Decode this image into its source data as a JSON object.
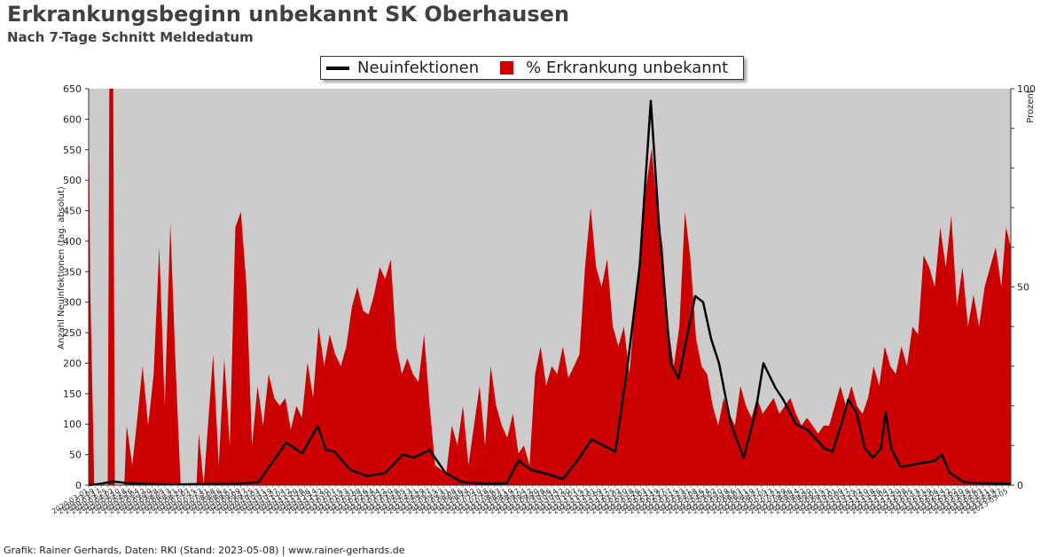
{
  "title": "Erkrankungsbeginn unbekannt SK Oberhausen",
  "subtitle": "Nach 7-Tage Schnitt Meldedatum",
  "footer": "Grafik: Rainer Gerhards, Daten: RKI (Stand: 2023-05-08) | www.rainer-gerhards.de",
  "colors": {
    "plot_background": "#cccccc",
    "line": "#000000",
    "area": "#cc0000"
  },
  "chart_data": {
    "type": "area",
    "xlabel": "",
    "ylabel": "Anzahl Neuinfektionen (tag. absolut)",
    "y2label": "Prozent",
    "ylim": [
      0,
      650
    ],
    "y2lim": [
      0,
      100
    ],
    "yticks": [
      0,
      50,
      100,
      150,
      200,
      250,
      300,
      350,
      400,
      450,
      500,
      550,
      600,
      650
    ],
    "y2ticks": [
      0,
      50,
      100
    ],
    "x_start": "2020-03-01",
    "x_end": "2023-05-08",
    "legend_position": "top-center",
    "grid": false,
    "series": [
      {
        "name": "Neuinfektionen",
        "kind": "line",
        "axis": "left",
        "points": [
          [
            "2020-03-01",
            0
          ],
          [
            "2020-03-15",
            2
          ],
          [
            "2020-04-01",
            6
          ],
          [
            "2020-04-20",
            3
          ],
          [
            "2020-05-15",
            2
          ],
          [
            "2020-06-15",
            1
          ],
          [
            "2020-08-01",
            2
          ],
          [
            "2020-09-01",
            2
          ],
          [
            "2020-10-01",
            5
          ],
          [
            "2020-10-20",
            40
          ],
          [
            "2020-11-05",
            70
          ],
          [
            "2020-11-25",
            52
          ],
          [
            "2020-12-15",
            97
          ],
          [
            "2020-12-25",
            58
          ],
          [
            "2021-01-05",
            55
          ],
          [
            "2021-01-25",
            25
          ],
          [
            "2021-02-15",
            15
          ],
          [
            "2021-03-10",
            20
          ],
          [
            "2021-04-01",
            50
          ],
          [
            "2021-04-15",
            45
          ],
          [
            "2021-05-05",
            58
          ],
          [
            "2021-05-25",
            20
          ],
          [
            "2021-06-15",
            5
          ],
          [
            "2021-07-15",
            2
          ],
          [
            "2021-08-10",
            3
          ],
          [
            "2021-08-25",
            40
          ],
          [
            "2021-09-10",
            25
          ],
          [
            "2021-10-01",
            18
          ],
          [
            "2021-10-20",
            10
          ],
          [
            "2021-11-10",
            45
          ],
          [
            "2021-11-25",
            75
          ],
          [
            "2021-12-10",
            65
          ],
          [
            "2021-12-25",
            55
          ],
          [
            "2022-01-10",
            200
          ],
          [
            "2022-01-25",
            360
          ],
          [
            "2022-02-08",
            630
          ],
          [
            "2022-02-18",
            430
          ],
          [
            "2022-03-05",
            200
          ],
          [
            "2022-03-15",
            175
          ],
          [
            "2022-03-28",
            260
          ],
          [
            "2022-04-05",
            310
          ],
          [
            "2022-04-15",
            300
          ],
          [
            "2022-04-25",
            240
          ],
          [
            "2022-05-05",
            200
          ],
          [
            "2022-05-20",
            100
          ],
          [
            "2022-06-05",
            45
          ],
          [
            "2022-06-20",
            120
          ],
          [
            "2022-06-30",
            200
          ],
          [
            "2022-07-15",
            160
          ],
          [
            "2022-07-25",
            140
          ],
          [
            "2022-08-10",
            100
          ],
          [
            "2022-08-25",
            90
          ],
          [
            "2022-09-15",
            60
          ],
          [
            "2022-09-25",
            55
          ],
          [
            "2022-10-05",
            95
          ],
          [
            "2022-10-15",
            140
          ],
          [
            "2022-10-25",
            120
          ],
          [
            "2022-11-05",
            60
          ],
          [
            "2022-11-15",
            45
          ],
          [
            "2022-11-25",
            60
          ],
          [
            "2022-12-01",
            120
          ],
          [
            "2022-12-08",
            60
          ],
          [
            "2022-12-20",
            30
          ],
          [
            "2023-01-10",
            35
          ],
          [
            "2023-02-01",
            40
          ],
          [
            "2023-02-10",
            50
          ],
          [
            "2023-02-20",
            20
          ],
          [
            "2023-03-10",
            5
          ],
          [
            "2023-04-01",
            3
          ],
          [
            "2023-05-08",
            2
          ]
        ]
      },
      {
        "name": "% Erkrankung unbekannt",
        "kind": "area",
        "axis": "right",
        "points": [
          [
            "2020-03-01",
            100
          ],
          [
            "2020-03-03",
            50
          ],
          [
            "2020-03-08",
            0
          ],
          [
            "2020-03-25",
            0
          ],
          [
            "2020-03-27",
            100
          ],
          [
            "2020-04-01",
            100
          ],
          [
            "2020-04-03",
            0
          ],
          [
            "2020-04-15",
            0
          ],
          [
            "2020-04-18",
            15
          ],
          [
            "2020-04-25",
            5
          ],
          [
            "2020-05-01",
            16
          ],
          [
            "2020-05-08",
            30
          ],
          [
            "2020-05-15",
            15
          ],
          [
            "2020-05-22",
            28
          ],
          [
            "2020-05-29",
            60
          ],
          [
            "2020-06-05",
            20
          ],
          [
            "2020-06-12",
            66
          ],
          [
            "2020-06-18",
            33
          ],
          [
            "2020-06-25",
            0
          ],
          [
            "2020-07-15",
            0
          ],
          [
            "2020-07-18",
            13
          ],
          [
            "2020-07-24",
            0
          ],
          [
            "2020-08-05",
            33
          ],
          [
            "2020-08-12",
            5
          ],
          [
            "2020-08-19",
            32
          ],
          [
            "2020-08-26",
            10
          ],
          [
            "2020-09-02",
            65
          ],
          [
            "2020-09-09",
            69
          ],
          [
            "2020-09-16",
            50
          ],
          [
            "2020-09-23",
            10
          ],
          [
            "2020-09-30",
            25
          ],
          [
            "2020-10-07",
            15
          ],
          [
            "2020-10-14",
            28
          ],
          [
            "2020-10-21",
            22
          ],
          [
            "2020-10-28",
            20
          ],
          [
            "2020-11-04",
            22
          ],
          [
            "2020-11-11",
            14
          ],
          [
            "2020-11-18",
            20
          ],
          [
            "2020-11-25",
            17
          ],
          [
            "2020-12-02",
            31
          ],
          [
            "2020-12-09",
            22
          ],
          [
            "2020-12-16",
            40
          ],
          [
            "2020-12-23",
            30
          ],
          [
            "2020-12-30",
            38
          ],
          [
            "2021-01-06",
            33
          ],
          [
            "2021-01-13",
            30
          ],
          [
            "2021-01-20",
            35
          ],
          [
            "2021-01-27",
            45
          ],
          [
            "2021-02-03",
            50
          ],
          [
            "2021-02-10",
            44
          ],
          [
            "2021-02-17",
            43
          ],
          [
            "2021-02-24",
            48
          ],
          [
            "2021-03-03",
            55
          ],
          [
            "2021-03-10",
            52
          ],
          [
            "2021-03-17",
            57
          ],
          [
            "2021-03-24",
            35
          ],
          [
            "2021-03-31",
            28
          ],
          [
            "2021-04-07",
            32
          ],
          [
            "2021-04-14",
            28
          ],
          [
            "2021-04-21",
            26
          ],
          [
            "2021-04-28",
            38
          ],
          [
            "2021-05-05",
            20
          ],
          [
            "2021-05-12",
            5
          ],
          [
            "2021-05-19",
            4
          ],
          [
            "2021-05-26",
            3
          ],
          [
            "2021-06-02",
            15
          ],
          [
            "2021-06-09",
            10
          ],
          [
            "2021-06-16",
            20
          ],
          [
            "2021-06-23",
            5
          ],
          [
            "2021-06-30",
            15
          ],
          [
            "2021-07-07",
            25
          ],
          [
            "2021-07-14",
            10
          ],
          [
            "2021-07-21",
            30
          ],
          [
            "2021-07-28",
            20
          ],
          [
            "2021-08-04",
            15
          ],
          [
            "2021-08-11",
            12
          ],
          [
            "2021-08-18",
            18
          ],
          [
            "2021-08-25",
            8
          ],
          [
            "2021-09-01",
            10
          ],
          [
            "2021-09-08",
            5
          ],
          [
            "2021-09-15",
            28
          ],
          [
            "2021-09-22",
            35
          ],
          [
            "2021-09-29",
            25
          ],
          [
            "2021-10-06",
            30
          ],
          [
            "2021-10-13",
            28
          ],
          [
            "2021-10-20",
            35
          ],
          [
            "2021-10-27",
            27
          ],
          [
            "2021-11-03",
            30
          ],
          [
            "2021-11-10",
            33
          ],
          [
            "2021-11-17",
            55
          ],
          [
            "2021-11-24",
            70
          ],
          [
            "2021-12-01",
            55
          ],
          [
            "2021-12-08",
            50
          ],
          [
            "2021-12-15",
            57
          ],
          [
            "2021-12-22",
            40
          ],
          [
            "2021-12-29",
            35
          ],
          [
            "2022-01-05",
            40
          ],
          [
            "2022-01-12",
            28
          ],
          [
            "2022-01-19",
            45
          ],
          [
            "2022-01-26",
            60
          ],
          [
            "2022-02-02",
            75
          ],
          [
            "2022-02-09",
            85
          ],
          [
            "2022-02-16",
            70
          ],
          [
            "2022-02-23",
            60
          ],
          [
            "2022-03-02",
            40
          ],
          [
            "2022-03-09",
            30
          ],
          [
            "2022-03-16",
            40
          ],
          [
            "2022-03-23",
            69
          ],
          [
            "2022-03-30",
            57
          ],
          [
            "2022-04-06",
            37
          ],
          [
            "2022-04-13",
            30
          ],
          [
            "2022-04-20",
            28
          ],
          [
            "2022-04-27",
            20
          ],
          [
            "2022-05-04",
            15
          ],
          [
            "2022-05-11",
            22
          ],
          [
            "2022-05-18",
            18
          ],
          [
            "2022-05-25",
            15
          ],
          [
            "2022-06-01",
            25
          ],
          [
            "2022-06-08",
            20
          ],
          [
            "2022-06-15",
            17
          ],
          [
            "2022-06-22",
            22
          ],
          [
            "2022-06-29",
            18
          ],
          [
            "2022-07-06",
            20
          ],
          [
            "2022-07-13",
            22
          ],
          [
            "2022-07-20",
            18
          ],
          [
            "2022-07-27",
            20
          ],
          [
            "2022-08-03",
            22
          ],
          [
            "2022-08-10",
            18
          ],
          [
            "2022-08-17",
            15
          ],
          [
            "2022-08-24",
            17
          ],
          [
            "2022-08-31",
            15
          ],
          [
            "2022-09-07",
            13
          ],
          [
            "2022-09-14",
            15
          ],
          [
            "2022-09-21",
            15
          ],
          [
            "2022-09-28",
            20
          ],
          [
            "2022-10-05",
            25
          ],
          [
            "2022-10-12",
            20
          ],
          [
            "2022-10-19",
            25
          ],
          [
            "2022-10-26",
            20
          ],
          [
            "2022-11-02",
            18
          ],
          [
            "2022-11-09",
            22
          ],
          [
            "2022-11-16",
            30
          ],
          [
            "2022-11-23",
            25
          ],
          [
            "2022-11-30",
            35
          ],
          [
            "2022-12-07",
            30
          ],
          [
            "2022-12-14",
            28
          ],
          [
            "2022-12-21",
            35
          ],
          [
            "2022-12-28",
            30
          ],
          [
            "2023-01-04",
            40
          ],
          [
            "2023-01-11",
            38
          ],
          [
            "2023-01-18",
            58
          ],
          [
            "2023-01-25",
            55
          ],
          [
            "2023-02-01",
            50
          ],
          [
            "2023-02-08",
            65
          ],
          [
            "2023-02-15",
            55
          ],
          [
            "2023-02-22",
            68
          ],
          [
            "2023-03-01",
            45
          ],
          [
            "2023-03-08",
            55
          ],
          [
            "2023-03-15",
            40
          ],
          [
            "2023-03-22",
            48
          ],
          [
            "2023-03-29",
            40
          ],
          [
            "2023-04-05",
            50
          ],
          [
            "2023-04-12",
            55
          ],
          [
            "2023-04-19",
            60
          ],
          [
            "2023-04-26",
            50
          ],
          [
            "2023-05-02",
            65
          ],
          [
            "2023-05-08",
            60
          ]
        ]
      }
    ]
  }
}
